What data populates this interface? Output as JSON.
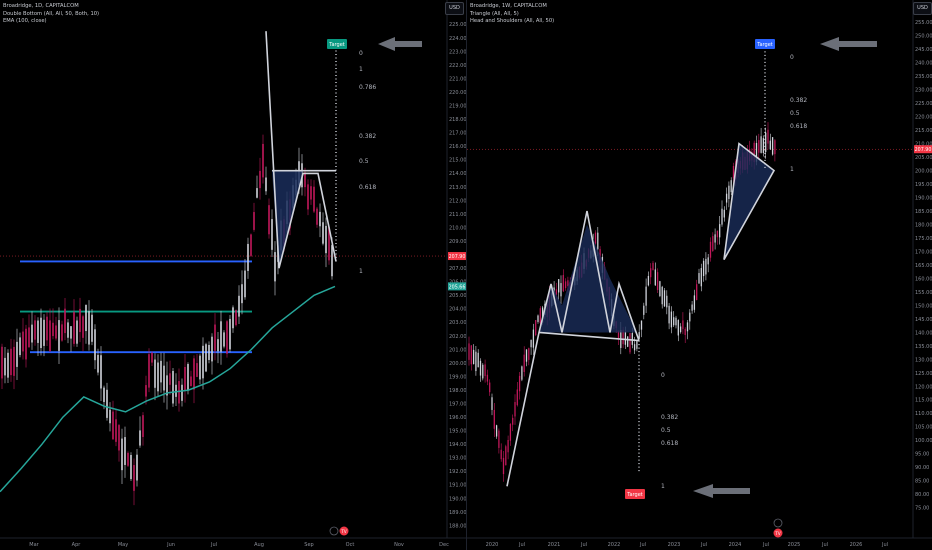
{
  "left_panel": {
    "legend": [
      "Broadridge, 1D, CAPITALCOM",
      "Double Bottom (All, All, 50, Both, 10)",
      "EMA (100, close)"
    ],
    "currency": "USD",
    "price_badge": "207.90",
    "ema_badge": "205.66",
    "target_label": "Target",
    "fib_labels": [
      "0",
      "1",
      "0.786",
      "0.382",
      "0.5",
      "0.618",
      "1"
    ],
    "tv_logo": "TV"
  },
  "right_panel": {
    "legend": [
      "Broadridge, 1W, CAPITALCOM",
      "Triangle (All, All, 5)",
      "Head and Shoulders (All, All, 50)"
    ],
    "currency": "USD",
    "price_badge": "207.90",
    "target_top_label": "Target",
    "target_bottom_label": "Target",
    "fib_top_labels": [
      "0",
      "0.382",
      "0.5",
      "0.618",
      "1"
    ],
    "fib_bottom_labels": [
      "0",
      "0.382",
      "0.5",
      "0.618",
      "1"
    ],
    "tv_logo": "TV"
  },
  "colors": {
    "background": "#000000",
    "up": "#d1d4dc",
    "down": "#c2185b",
    "ema": "#26a69a",
    "blue_line": "#2962ff",
    "green_line": "#089981",
    "target_green": "#089981",
    "target_blue": "#2962ff",
    "target_red": "#f23645",
    "price_badge": "#f23645",
    "fib_zero": "#2962ff",
    "fib_382": "#4caf50",
    "fib_618": "#ff8a80"
  },
  "chart_data": [
    {
      "type": "candlestick",
      "title": "Broadridge, 1D, CAPITALCOM",
      "x_ticks": [
        "Mar",
        "Apr",
        "May",
        "Jun",
        "Jul",
        "Aug",
        "Sep",
        "Oct",
        "Nov",
        "Dec"
      ],
      "y_ticks": [
        188.0,
        189.0,
        190.0,
        191.0,
        192.0,
        193.0,
        194.0,
        195.0,
        196.0,
        197.0,
        198.0,
        199.0,
        200.0,
        201.0,
        202.0,
        203.0,
        204.0,
        205.0,
        206.0,
        207.0,
        208.0,
        209.0,
        210.0,
        211.0,
        212.0,
        213.0,
        214.0,
        215.0,
        216.0,
        217.0,
        218.0,
        219.0,
        220.0,
        221.0,
        222.0,
        223.0,
        224.0,
        225.0
      ],
      "ylim": [
        187.6,
        225.4
      ],
      "last_price": 207.9,
      "ema_last": 205.66,
      "horizontal_levels": [
        207.5,
        203.8,
        200.8
      ],
      "pattern": "Double Bottom",
      "series": [
        {
          "name": "EMA (100, close)",
          "values": [
            190.5,
            192.2,
            194.0,
            196.0,
            197.5,
            196.8,
            196.4,
            197.2,
            197.8,
            198.0,
            198.6,
            199.6,
            201.0,
            202.6,
            203.8,
            205.0,
            205.66
          ]
        }
      ]
    },
    {
      "type": "candlestick",
      "title": "Broadridge, 1W, CAPITALCOM",
      "x_ticks": [
        "2020",
        "Jul",
        "2021",
        "Jul",
        "2022",
        "Jul",
        "2023",
        "Jul",
        "2024",
        "Jul",
        "2025",
        "Jul",
        "2026",
        "Jul"
      ],
      "y_ticks": [
        75.0,
        80.0,
        85.0,
        90.0,
        95.0,
        100.0,
        105.0,
        110.0,
        115.0,
        120.0,
        125.0,
        130.0,
        135.0,
        140.0,
        145.0,
        150.0,
        155.0,
        160.0,
        165.0,
        170.0,
        175.0,
        180.0,
        185.0,
        190.0,
        195.0,
        200.0,
        205.0,
        210.0,
        215.0,
        220.0,
        225.0,
        230.0,
        235.0,
        240.0,
        245.0,
        250.0,
        255.0
      ],
      "ylim": [
        72.0,
        258.0
      ],
      "last_price": 207.9,
      "patterns": [
        "Triangle",
        "Head and Shoulders"
      ]
    }
  ]
}
